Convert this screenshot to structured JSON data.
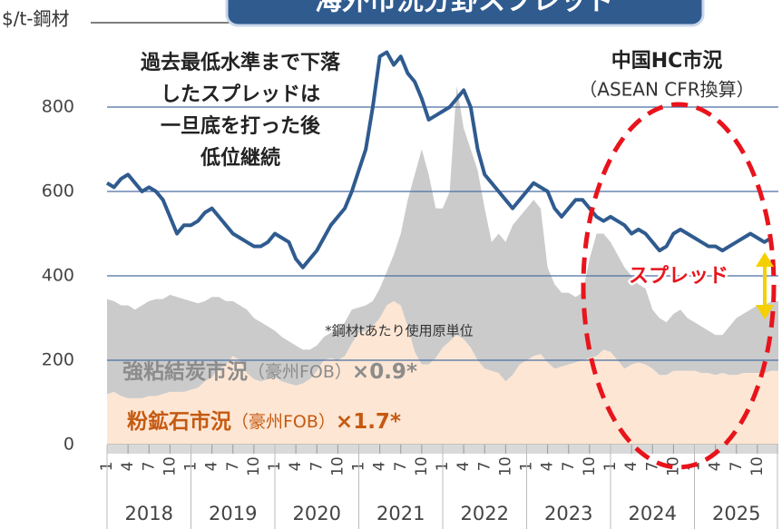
{
  "chart_data": {
    "type": "stacked_area_line",
    "title": "海外市況分野スプレッド",
    "y_label": "$/t-鋼材",
    "annotation_lines": [
      "過去最低水準まで下落",
      "したスプレッドは",
      "一旦底を打った後",
      "低位継続"
    ],
    "footnote": "*鋼材tあたり使用原単位",
    "spread_label": "スプレッド",
    "categories": [
      "1",
      null,
      null,
      "4",
      null,
      null,
      "7",
      null,
      null,
      "10",
      null,
      null,
      "1",
      null,
      null,
      "4",
      null,
      null,
      "7",
      null,
      null,
      "10",
      null,
      null,
      "1",
      null,
      null,
      "4",
      null,
      null,
      "7",
      null,
      null,
      "10",
      null,
      null,
      "1",
      null,
      null,
      "4",
      null,
      null,
      "7",
      null,
      null,
      "10",
      null,
      null,
      "1",
      null,
      null,
      "4",
      null,
      null,
      "7",
      null,
      null,
      "10",
      null,
      null,
      "1",
      null,
      null,
      "4",
      null,
      null,
      "7",
      null,
      null,
      "10",
      null,
      null,
      "1",
      null,
      null,
      "4",
      null,
      null,
      "7",
      null,
      null,
      "10",
      null,
      null,
      "1",
      null,
      null,
      "4",
      null,
      null,
      "7",
      null,
      null,
      "10",
      null,
      null
    ],
    "years": [
      "2018",
      "2019",
      "2020",
      "2021",
      "2022",
      "2023",
      "2024",
      "2025"
    ],
    "ylim": [
      0,
      1000
    ],
    "yticks": [
      0,
      200,
      400,
      600,
      800
    ],
    "grid": true,
    "series": [
      {
        "name": "粉鉱石市況",
        "source": "（豪州FOB）",
        "factor": "×1.7*",
        "kind": "area",
        "color": "#fde6d4",
        "label_color": "#c55a11",
        "values": [
          120,
          125,
          115,
          110,
          110,
          110,
          115,
          115,
          120,
          125,
          125,
          125,
          130,
          135,
          150,
          160,
          180,
          190,
          210,
          200,
          170,
          155,
          150,
          155,
          160,
          150,
          145,
          140,
          145,
          155,
          175,
          200,
          205,
          200,
          210,
          240,
          265,
          270,
          280,
          300,
          330,
          340,
          330,
          280,
          220,
          190,
          190,
          205,
          230,
          245,
          260,
          250,
          230,
          200,
          180,
          175,
          170,
          150,
          165,
          190,
          200,
          210,
          215,
          195,
          180,
          185,
          190,
          195,
          200,
          205,
          210,
          225,
          220,
          200,
          180,
          190,
          195,
          190,
          180,
          165,
          165,
          175,
          175,
          175,
          175,
          170,
          170,
          165,
          170,
          165,
          165,
          170,
          170,
          170,
          170,
          175
        ]
      },
      {
        "name": "強粘結炭市況",
        "source": "（豪州FOB）",
        "factor": "×0.9*",
        "kind": "area",
        "color": "#cbcbcb",
        "label_color": "#8c8c8c",
        "values": [
          225,
          215,
          215,
          220,
          210,
          220,
          225,
          230,
          225,
          230,
          225,
          220,
          210,
          200,
          190,
          190,
          170,
          150,
          130,
          130,
          150,
          145,
          140,
          125,
          110,
          105,
          100,
          95,
          80,
          70,
          60,
          55,
          60,
          70,
          80,
          80,
          60,
          60,
          60,
          70,
          80,
          110,
          170,
          300,
          420,
          510,
          450,
          355,
          330,
          355,
          590,
          500,
          470,
          450,
          380,
          305,
          330,
          330,
          355,
          350,
          360,
          370,
          345,
          225,
          200,
          175,
          170,
          155,
          160,
          235,
          290,
          275,
          260,
          250,
          240,
          210,
          185,
          180,
          140,
          135,
          125,
          135,
          145,
          125,
          115,
          110,
          100,
          95,
          90,
          115,
          135,
          140,
          150,
          160,
          160,
          165
        ]
      },
      {
        "name": "中国HC市況",
        "source": "（ASEAN CFR換算）",
        "kind": "line",
        "color": "#2f5b8f",
        "label_color": "#2f5b8f",
        "values": [
          620,
          610,
          630,
          640,
          620,
          600,
          610,
          600,
          580,
          540,
          500,
          520,
          520,
          530,
          550,
          560,
          540,
          520,
          500,
          490,
          480,
          470,
          470,
          480,
          500,
          490,
          480,
          440,
          420,
          440,
          460,
          490,
          520,
          540,
          560,
          600,
          650,
          700,
          800,
          920,
          930,
          900,
          920,
          880,
          860,
          820,
          770,
          780,
          790,
          800,
          820,
          840,
          800,
          700,
          640,
          620,
          600,
          580,
          560,
          580,
          600,
          620,
          610,
          600,
          560,
          540,
          560,
          580,
          580,
          560,
          540,
          530,
          540,
          530,
          520,
          500,
          510,
          500,
          480,
          460,
          470,
          500,
          510,
          500,
          490,
          480,
          470,
          470,
          460,
          470,
          480,
          490,
          500,
          490,
          480,
          490
        ]
      }
    ]
  }
}
